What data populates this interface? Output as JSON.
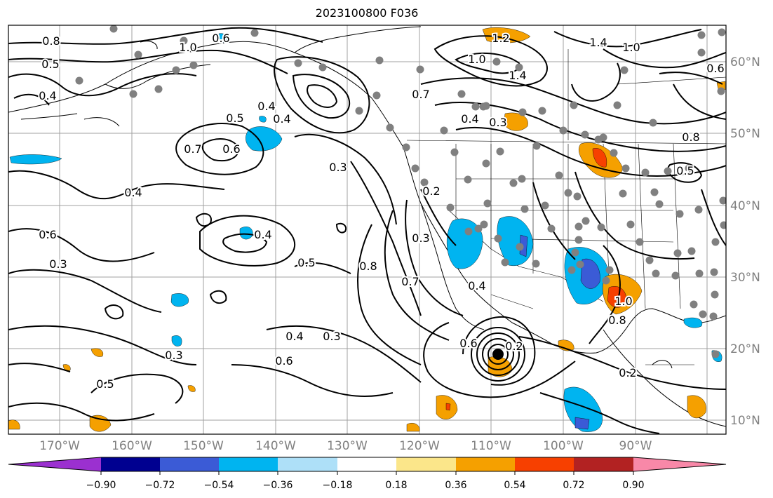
{
  "title": "2023100800 F036",
  "map": {
    "lon_labels": [
      "170°W",
      "160°W",
      "150°W",
      "140°W",
      "130°W",
      "120°W",
      "110°W",
      "100°W",
      "90°W"
    ],
    "lat_labels": [
      "60°N",
      "50°N",
      "40°N",
      "30°N",
      "20°N",
      "10°N"
    ],
    "contour_labels": [
      "0.8",
      "0.5",
      "0.4",
      "1.0",
      "0.6",
      "0.4",
      "0.5",
      "0.6",
      "0.7",
      "0.4",
      "0.3",
      "0.4",
      "0.6",
      "0.4",
      "0.5",
      "0.3",
      "0.3",
      "0.5",
      "0.4",
      "0.3",
      "0.6",
      "0.8",
      "0.7",
      "0.3",
      "0.2",
      "0.4",
      "0.6",
      "0.2",
      "0.8",
      "1.0",
      "1.4",
      "1.2",
      "1.0",
      "0.8",
      "0.2",
      "0.5",
      "1.0",
      "1.4",
      "0.3",
      "0.4",
      "0.6",
      "0.7"
    ],
    "fill_colors": {
      "neg_090": "#9b30d0",
      "neg_072": "#000090",
      "neg_054": "#3b5bd6",
      "neg_036": "#00b4f0",
      "neg_018": "#aee0f8",
      "zero": "#ffffff",
      "pos_018": "#fbe68a",
      "pos_036": "#f5a000",
      "pos_054": "#f74000",
      "pos_072": "#b22222",
      "pos_090": "#f888a8"
    },
    "station_color": "#808080"
  },
  "colorbar": {
    "tick_labels": [
      "−0.90",
      "−0.72",
      "−0.54",
      "−0.36",
      "−0.18",
      "0.18",
      "0.36",
      "0.54",
      "0.72",
      "0.90"
    ],
    "segment_colors": [
      "#9b30d0",
      "#000090",
      "#3b5bd6",
      "#00b4f0",
      "#aee0f8",
      "#ffffff",
      "#fbe68a",
      "#f5a000",
      "#f74000",
      "#b22222",
      "#f888a8",
      "#f888a8"
    ]
  }
}
